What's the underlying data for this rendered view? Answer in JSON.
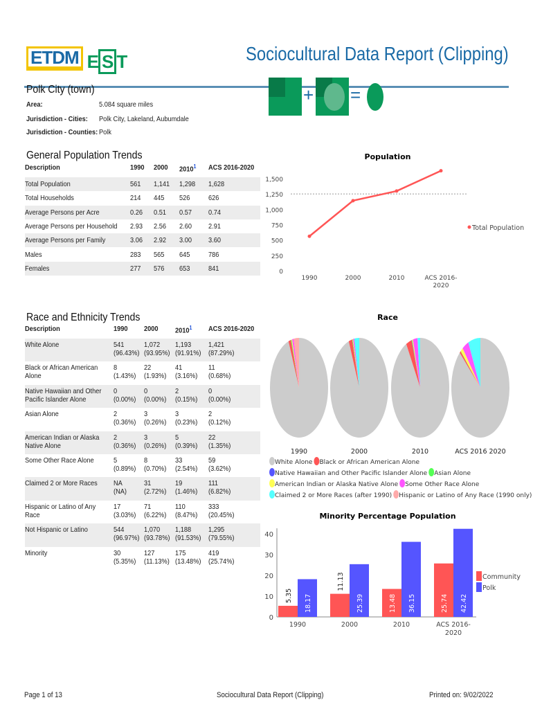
{
  "header": {
    "logo_text": "ETDM EST",
    "title": "Sociocultural Data Report (Clipping)"
  },
  "place": {
    "name": "Polk City (town)",
    "area_label": "Area:",
    "area_value": "5.084 square miles",
    "cities_label": "Jurisdiction - Cities:",
    "cities_value": "Polk City, Lakeland, Aubumdale",
    "counties_label": "Jurisdiction - Counties:",
    "counties_value": "Polk"
  },
  "general": {
    "heading": "General Population Trends",
    "columns": [
      "Description",
      "1990",
      "2000",
      "2010",
      "ACS 2016-2020"
    ],
    "footnote_marker": "1",
    "rows": [
      [
        "Total Population",
        "561",
        "1,141",
        "1,298",
        "1,628"
      ],
      [
        "Total Households",
        "214",
        "445",
        "526",
        "626"
      ],
      [
        "Average Persons per Acre",
        "0.26",
        "0.51",
        "0.57",
        "0.74"
      ],
      [
        "Average Persons per Household",
        "2.93",
        "2.56",
        "2.60",
        "2.91"
      ],
      [
        "Average Persons per Family",
        "3.06",
        "2.92",
        "3.00",
        "3.60"
      ],
      [
        "Males",
        "283",
        "565",
        "645",
        "786"
      ],
      [
        "Females",
        "277",
        "576",
        "653",
        "841"
      ]
    ]
  },
  "race": {
    "heading": "Race and Ethnicity Trends",
    "columns": [
      "Description",
      "1990",
      "2000",
      "2010",
      "ACS 2016-2020"
    ],
    "footnote_marker": "1",
    "rows": [
      [
        "White Alone",
        [
          "541",
          "(96.43%)"
        ],
        [
          "1,072",
          "(93.95%)"
        ],
        [
          "1,193",
          "(91.91%)"
        ],
        [
          "1,421",
          "(87.29%)"
        ]
      ],
      [
        "Black or African American Alone",
        [
          "8",
          "(1.43%)"
        ],
        [
          "22",
          "(1.93%)"
        ],
        [
          "41",
          "(3.16%)"
        ],
        [
          "11",
          "(0.68%)"
        ]
      ],
      [
        "Native Hawaiian and Other Pacific Islander Alone",
        [
          "0",
          "(0.00%)"
        ],
        [
          "0",
          "(0.00%)"
        ],
        [
          "2",
          "(0.15%)"
        ],
        [
          "0",
          "(0.00%)"
        ]
      ],
      [
        "Asian Alone",
        [
          "2",
          "(0.36%)"
        ],
        [
          "3",
          "(0.26%)"
        ],
        [
          "3",
          "(0.23%)"
        ],
        [
          "2",
          "(0.12%)"
        ]
      ],
      [
        "American Indian or Alaska Native Alone",
        [
          "2",
          "(0.36%)"
        ],
        [
          "3",
          "(0.26%)"
        ],
        [
          "5",
          "(0.39%)"
        ],
        [
          "22",
          "(1.35%)"
        ]
      ],
      [
        "Some Other Race Alone",
        [
          "5",
          "(0.89%)"
        ],
        [
          "8",
          "(0.70%)"
        ],
        [
          "33",
          "(2.54%)"
        ],
        [
          "59",
          "(3.62%)"
        ]
      ],
      [
        "Claimed 2 or More Races",
        [
          "NA",
          "(NA)"
        ],
        [
          "31",
          "(2.72%)"
        ],
        [
          "19",
          "(1.46%)"
        ],
        [
          "111",
          "(6.82%)"
        ]
      ],
      [
        "Hispanic or Latino of Any Race",
        [
          "17",
          "(3.03%)"
        ],
        [
          "71",
          "(6.22%)"
        ],
        [
          "110",
          "(8.47%)"
        ],
        [
          "333",
          "(20.45%)"
        ]
      ],
      [
        "Not Hispanic or Latino",
        [
          "544",
          "(96.97%)"
        ],
        [
          "1,070",
          "(93.78%)"
        ],
        [
          "1,188",
          "(91.53%)"
        ],
        [
          "1,295",
          "(79.55%)"
        ]
      ],
      [
        "Minority",
        [
          "30",
          "(5.35%)"
        ],
        [
          "127",
          "(11.13%)"
        ],
        [
          "175",
          "(13.48%)"
        ],
        [
          "419",
          "(25.74%)"
        ]
      ]
    ]
  },
  "chart_data": [
    {
      "type": "line",
      "title": "Population",
      "categories": [
        "1990",
        "2000",
        "2010",
        "ACS 2016-2020"
      ],
      "category_labels": [
        [
          "1990"
        ],
        [
          "2000"
        ],
        [
          "2010"
        ],
        [
          "ACS 2016-",
          "2020"
        ]
      ],
      "series": [
        {
          "name": "Total Population",
          "values": [
            561,
            1141,
            1298,
            1628
          ],
          "color": "#ff5555"
        }
      ],
      "yticks": [
        "0",
        "250",
        "500",
        "750",
        "1,000",
        "1,250",
        "1,500"
      ],
      "ylim": [
        0,
        1500
      ],
      "legend": "right"
    },
    {
      "type": "pie",
      "title": "Race",
      "categories": [
        "1990",
        "2000",
        "2010",
        "ACS 2016 2020"
      ],
      "legend_entries": [
        {
          "name": "White Alone",
          "color": "#cccccc"
        },
        {
          "name": "Black or African American Alone",
          "color": "#ff5555"
        },
        {
          "name": "Native Hawaiian and Other Pacific Islander Alone",
          "color": "#5555ff"
        },
        {
          "name": "Asian Alone",
          "color": "#55ff55"
        },
        {
          "name": "American Indian or Alaska Native Alone",
          "color": "#ffff55"
        },
        {
          "name": "Some Other Race Alone",
          "color": "#ff55ff"
        },
        {
          "name": "Claimed 2 or More Races (after 1990)",
          "color": "#55ffff"
        },
        {
          "name": "Hispanic or Latino of Any Race (1990 only)",
          "color": "#ffaaaa"
        }
      ],
      "pies": [
        [
          541,
          8,
          0,
          2,
          2,
          5,
          0,
          17
        ],
        [
          1072,
          22,
          0,
          3,
          3,
          8,
          31,
          0
        ],
        [
          1193,
          41,
          2,
          3,
          5,
          33,
          19,
          0
        ],
        [
          1421,
          11,
          0,
          2,
          22,
          59,
          111,
          0
        ]
      ],
      "legend": "bottom"
    },
    {
      "type": "bar",
      "title": "Minority Percentage Population",
      "categories": [
        "1990",
        "2000",
        "2010",
        "ACS 2016-2020"
      ],
      "category_labels": [
        [
          "1990"
        ],
        [
          "2000"
        ],
        [
          "2010"
        ],
        [
          "ACS 2016-",
          "2020"
        ]
      ],
      "series": [
        {
          "name": "Community",
          "values": [
            5.35,
            11.13,
            13.48,
            25.74
          ],
          "color": "#ff5555"
        },
        {
          "name": "Polk",
          "values": [
            18.17,
            25.39,
            36.15,
            42.42
          ],
          "color": "#5555ff"
        }
      ],
      "yticks": [
        "0",
        "10",
        "20",
        "30",
        "40"
      ],
      "ylim": [
        0,
        44
      ],
      "legend": "right"
    }
  ],
  "footer": {
    "page": "Page 1 of 13",
    "center": "Sociocultural Data Report (Clipping)",
    "printed": "Printed on: 9/02/2022"
  }
}
